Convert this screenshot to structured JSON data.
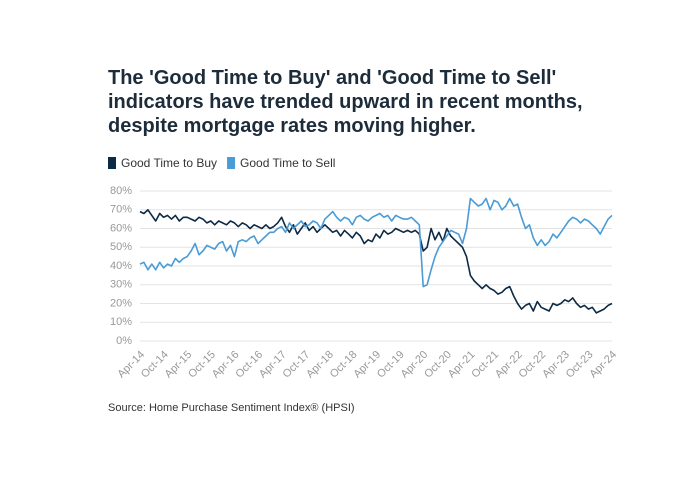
{
  "chart_data": {
    "type": "line",
    "title": "The 'Good Time to Buy' and 'Good Time to Sell' indicators have trended upward in recent months, despite mortgage rates moving higher.",
    "source": "Source: Home Purchase Sentiment Index® (HPSI)",
    "categories": [
      "Apr-14",
      null,
      null,
      null,
      null,
      null,
      "Oct-14",
      null,
      null,
      null,
      null,
      null,
      "Apr-15",
      null,
      null,
      null,
      null,
      null,
      "Oct-15",
      null,
      null,
      null,
      null,
      null,
      "Apr-16",
      null,
      null,
      null,
      null,
      null,
      "Oct-16",
      null,
      null,
      null,
      null,
      null,
      "Apr-17",
      null,
      null,
      null,
      null,
      null,
      "Oct-17",
      null,
      null,
      null,
      null,
      null,
      "Apr-18",
      null,
      null,
      null,
      null,
      null,
      "Oct-18",
      null,
      null,
      null,
      null,
      null,
      "Apr-19",
      null,
      null,
      null,
      null,
      null,
      "Oct-19",
      null,
      null,
      null,
      null,
      null,
      "Apr-20",
      null,
      null,
      null,
      null,
      null,
      "Oct-20",
      null,
      null,
      null,
      null,
      null,
      "Apr-21",
      null,
      null,
      null,
      null,
      null,
      "Oct-21",
      null,
      null,
      null,
      null,
      null,
      "Apr-22",
      null,
      null,
      null,
      null,
      null,
      "Oct-22",
      null,
      null,
      null,
      null,
      null,
      "Apr-23",
      null,
      null,
      null,
      null,
      null,
      "Oct-23",
      null,
      null,
      null,
      null,
      null,
      "Apr-24"
    ],
    "series": [
      {
        "name": "Good Time to Buy",
        "color": "#0d2a45",
        "values": [
          69,
          68,
          70,
          67,
          64,
          68,
          66,
          67,
          65,
          67,
          64,
          66,
          66,
          65,
          64,
          66,
          65,
          63,
          64,
          62,
          64,
          63,
          62,
          64,
          63,
          61,
          63,
          62,
          60,
          62,
          61,
          60,
          62,
          60,
          61,
          63,
          66,
          61,
          58,
          62,
          57,
          60,
          63,
          59,
          61,
          58,
          60,
          62,
          60,
          58,
          59,
          56,
          59,
          57,
          55,
          58,
          56,
          52,
          54,
          53,
          57,
          55,
          59,
          57,
          58,
          60,
          59,
          58,
          59,
          58,
          59,
          57,
          48,
          50,
          60,
          54,
          58,
          53,
          60,
          56,
          54,
          52,
          50,
          45,
          35,
          32,
          30,
          28,
          30,
          28,
          27,
          25,
          26,
          28,
          29,
          24,
          20,
          17,
          19,
          20,
          16,
          21,
          18,
          17,
          16,
          20,
          19,
          20,
          22,
          21,
          23,
          20,
          18,
          19,
          17,
          18,
          15,
          16,
          17,
          19,
          20
        ]
      },
      {
        "name": "Good Time to Sell",
        "color": "#4a9bd6",
        "values": [
          41,
          42,
          38,
          41,
          38,
          42,
          39,
          41,
          40,
          44,
          42,
          44,
          45,
          48,
          52,
          46,
          48,
          51,
          50,
          49,
          52,
          53,
          48,
          51,
          45,
          53,
          54,
          53,
          55,
          56,
          52,
          54,
          56,
          58,
          58,
          60,
          61,
          58,
          63,
          60,
          62,
          64,
          61,
          62,
          64,
          63,
          60,
          65,
          67,
          69,
          66,
          64,
          66,
          65,
          62,
          66,
          67,
          65,
          64,
          66,
          67,
          68,
          66,
          67,
          64,
          67,
          66,
          65,
          65,
          66,
          64,
          62,
          29,
          30,
          38,
          45,
          50,
          53,
          56,
          59,
          58,
          57,
          52,
          60,
          76,
          74,
          72,
          73,
          76,
          70,
          75,
          74,
          70,
          72,
          76,
          72,
          73,
          66,
          60,
          62,
          55,
          51,
          54,
          51,
          53,
          57,
          55,
          58,
          61,
          64,
          66,
          65,
          63,
          65,
          64,
          62,
          60,
          57,
          61,
          65,
          67
        ]
      }
    ],
    "ylim": [
      0,
      80
    ],
    "yticks": [
      {
        "value": 0,
        "label": "0%"
      },
      {
        "value": 10,
        "label": "10%"
      },
      {
        "value": 20,
        "label": "20%"
      },
      {
        "value": 30,
        "label": "30%"
      },
      {
        "value": 40,
        "label": "40%"
      },
      {
        "value": 50,
        "label": "50%"
      },
      {
        "value": 60,
        "label": "60%"
      },
      {
        "value": 70,
        "label": "70%"
      },
      {
        "value": 80,
        "label": "80%"
      }
    ],
    "grid": true,
    "legend": "top-left"
  }
}
